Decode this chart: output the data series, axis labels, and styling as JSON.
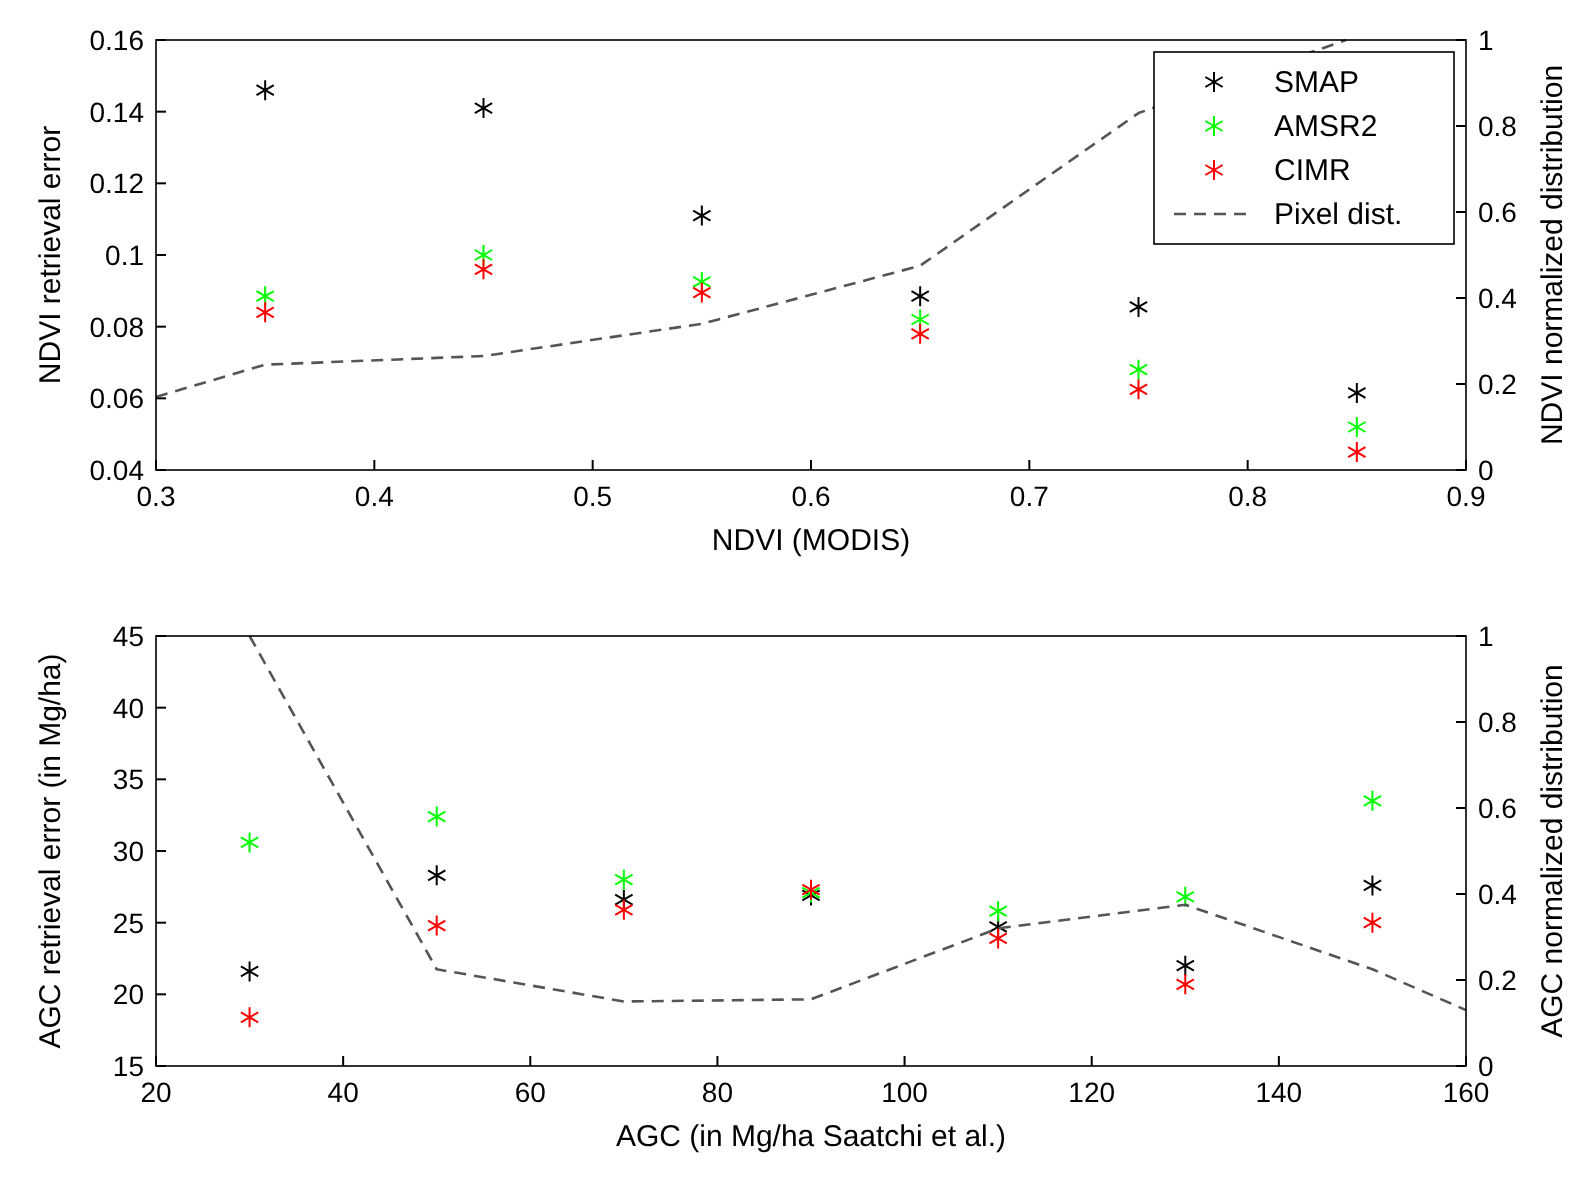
{
  "chart_data": [
    {
      "type": "scatter",
      "xlabel": "NDVI (MODIS)",
      "ylabel": "NDVI retrieval error",
      "y2label": "NDVI normalized distribution",
      "xlim": [
        0.3,
        0.9
      ],
      "xticks": [
        0.3,
        0.4,
        0.5,
        0.6,
        0.7,
        0.8,
        0.9
      ],
      "ylim": [
        0.04,
        0.16
      ],
      "yticks": [
        0.04,
        0.06,
        0.08,
        0.1,
        0.12,
        0.14,
        0.16
      ],
      "y2lim": [
        0,
        1
      ],
      "y2ticks": [
        0,
        0.2,
        0.4,
        0.6,
        0.8,
        1
      ],
      "x": [
        0.35,
        0.45,
        0.55,
        0.65,
        0.75,
        0.85
      ],
      "legend": "top right",
      "grid": false,
      "marker": "cross",
      "series": [
        {
          "name": "SMAP",
          "color": "#000000",
          "values": [
            0.146,
            0.141,
            0.111,
            0.0885,
            0.0855,
            0.0615
          ]
        },
        {
          "name": "AMSR2",
          "color": "#00ff00",
          "values": [
            0.0885,
            0.1,
            0.0925,
            0.082,
            0.068,
            0.052
          ]
        },
        {
          "name": "CIMR",
          "color": "#ff0000",
          "values": [
            0.084,
            0.096,
            0.0895,
            0.078,
            0.0625,
            0.045
          ]
        },
        {
          "name": "Pixel dist.",
          "type": "line",
          "axis": "y2",
          "color": "#555555",
          "line_style": "dashed",
          "marker": "none",
          "x": [
            0.3,
            0.35,
            0.45,
            0.55,
            0.65,
            0.75,
            0.845
          ],
          "values": [
            0.17,
            0.245,
            0.265,
            0.34,
            0.475,
            0.83,
            1.0
          ]
        }
      ]
    },
    {
      "type": "scatter",
      "xlabel": "AGC (in Mg/ha Saatchi et al.)",
      "ylabel": "AGC retrieval error (in Mg/ha)",
      "y2label": "AGC normalized distribution",
      "xlim": [
        20,
        160
      ],
      "xticks": [
        20,
        40,
        60,
        80,
        100,
        120,
        140,
        160
      ],
      "ylim": [
        15,
        45
      ],
      "yticks": [
        15,
        20,
        25,
        30,
        35,
        40,
        45
      ],
      "y2lim": [
        0,
        1
      ],
      "y2ticks": [
        0,
        0.2,
        0.4,
        0.6,
        0.8,
        1
      ],
      "x": [
        30,
        50,
        70,
        90,
        110,
        130,
        150
      ],
      "legend": false,
      "grid": false,
      "marker": "cross",
      "series": [
        {
          "color": "#000000",
          "values": [
            21.6,
            28.3,
            26.6,
            26.9,
            24.7,
            22.0,
            27.6
          ]
        },
        {
          "color": "#00ff00",
          "values": [
            30.6,
            32.4,
            28.0,
            27.1,
            25.8,
            26.8,
            33.5
          ]
        },
        {
          "color": "#ff0000",
          "values": [
            18.4,
            24.8,
            25.9,
            27.3,
            23.9,
            20.7,
            25.0
          ]
        },
        {
          "type": "line",
          "axis": "y2",
          "color": "#555555",
          "line_style": "dashed",
          "marker": "none",
          "x": [
            30,
            50,
            70,
            90,
            110,
            130,
            150,
            160
          ],
          "values": [
            1.0,
            0.225,
            0.15,
            0.155,
            0.32,
            0.375,
            0.225,
            0.13
          ]
        }
      ]
    }
  ]
}
